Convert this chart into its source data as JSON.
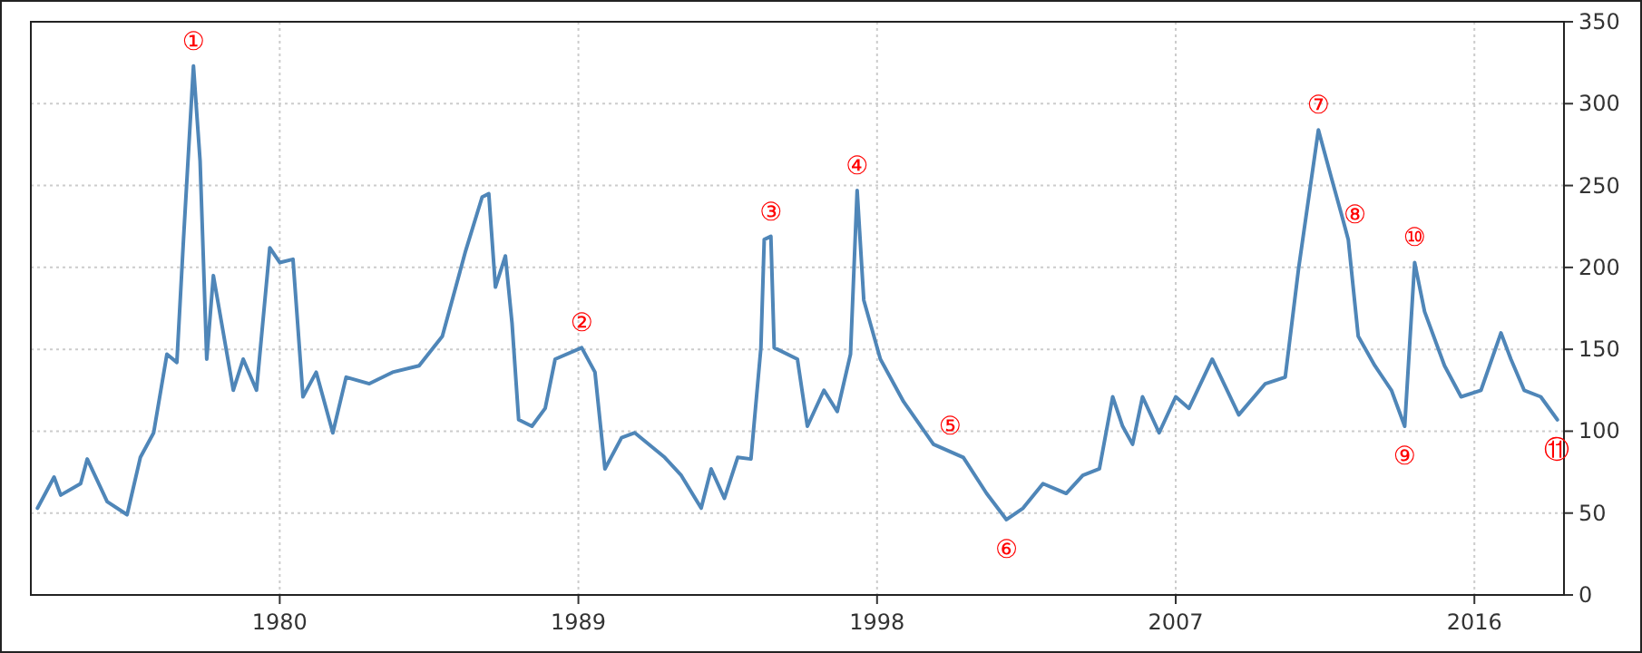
{
  "chart_data": {
    "type": "line",
    "color": "#4f86b8",
    "grid": true,
    "xlim": [
      1972.5,
      2018.7
    ],
    "xticks": [
      1980,
      1989,
      1998,
      2007,
      2016
    ],
    "ylim": [
      0,
      350
    ],
    "yticks": [
      0,
      50,
      100,
      150,
      200,
      250,
      300,
      350
    ],
    "x": [
      1972.7,
      1973.2,
      1973.4,
      1974.0,
      1974.2,
      1974.8,
      1975.4,
      1975.8,
      1976.2,
      1976.6,
      1976.9,
      1977.1,
      1977.4,
      1977.6,
      1977.8,
      1978.0,
      1978.6,
      1978.9,
      1979.3,
      1979.7,
      1980.0,
      1980.4,
      1980.7,
      1981.1,
      1981.6,
      1982.0,
      1982.7,
      1983.4,
      1984.2,
      1984.9,
      1985.6,
      1986.1,
      1986.3,
      1986.5,
      1986.8,
      1987.0,
      1987.2,
      1987.6,
      1988.0,
      1988.3,
      1989.1,
      1989.5,
      1989.8,
      1990.3,
      1990.7,
      1991.6,
      1992.1,
      1992.7,
      1993.0,
      1993.4,
      1993.8,
      1994.2,
      1994.5,
      1994.6,
      1994.8,
      1994.9,
      1995.6,
      1995.9,
      1996.4,
      1996.8,
      1997.2,
      1997.4,
      1997.6,
      1998.1,
      1998.8,
      1999.7,
      2000.6,
      2001.3,
      2001.9,
      2002.4,
      2003.0,
      2003.7,
      2004.2,
      2004.7,
      2005.1,
      2005.4,
      2005.7,
      2006.0,
      2006.5,
      2007.0,
      2007.4,
      2008.1,
      2008.9,
      2009.7,
      2010.3,
      2010.7,
      2011.3,
      2011.7,
      2012.0,
      2012.2,
      2012.5,
      2013.0,
      2013.5,
      2013.9,
      2014.2,
      2014.5,
      2015.1,
      2015.6,
      2016.2,
      2016.8,
      2017.1,
      2017.5,
      2018.0,
      2018.5
    ],
    "values": [
      53,
      72,
      61,
      68,
      83,
      57,
      49,
      84,
      99,
      147,
      142,
      217,
      323,
      265,
      144,
      195,
      125,
      144,
      125,
      212,
      203,
      205,
      121,
      136,
      99,
      133,
      129,
      136,
      140,
      158,
      210,
      243,
      245,
      188,
      207,
      166,
      107,
      103,
      114,
      144,
      151,
      136,
      77,
      96,
      99,
      84,
      73,
      53,
      77,
      59,
      84,
      83,
      151,
      217,
      219,
      151,
      144,
      103,
      125,
      112,
      147,
      247,
      180,
      144,
      118,
      92,
      84,
      62,
      46,
      53,
      68,
      62,
      73,
      77,
      121,
      103,
      92,
      121,
      99,
      121,
      114,
      144,
      110,
      129,
      133,
      199,
      284,
      254,
      232,
      217,
      158,
      140,
      125,
      103,
      203,
      173,
      140,
      121,
      125,
      160,
      144,
      125,
      121,
      107
    ],
    "annotations": [
      {
        "text": "①",
        "x": 1977.4,
        "y": 323
      },
      {
        "text": "②",
        "x": 1989.1,
        "y": 151
      },
      {
        "text": "③",
        "x": 1994.8,
        "y": 219
      },
      {
        "text": "④",
        "x": 1997.4,
        "y": 247
      },
      {
        "text": "⑤",
        "x": 2000.2,
        "y": 88
      },
      {
        "text": "⑥",
        "x": 2001.9,
        "y": 46
      },
      {
        "text": "⑦",
        "x": 2011.3,
        "y": 284
      },
      {
        "text": "⑧",
        "x": 2012.4,
        "y": 217
      },
      {
        "text": "⑨",
        "x": 2013.9,
        "y": 103
      },
      {
        "text": "⑩",
        "x": 2014.2,
        "y": 203
      },
      {
        "text": "⑪",
        "x": 2018.5,
        "y": 107
      }
    ]
  }
}
